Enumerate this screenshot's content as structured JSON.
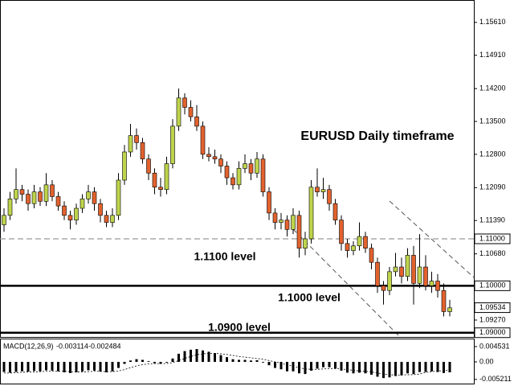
{
  "chart_data": [
    {
      "type": "candlestick",
      "title": "EURUSD Daily timeframe",
      "open": [
        1.113,
        1.115,
        1.1185,
        1.1205,
        1.1195,
        1.1175,
        1.12,
        1.118,
        1.1215,
        1.119,
        1.117,
        1.115,
        1.114,
        1.1165,
        1.1185,
        1.12,
        1.1175,
        1.115,
        1.1135,
        1.115,
        1.1225,
        1.1285,
        1.132,
        1.1305,
        1.127,
        1.124,
        1.121,
        1.1205,
        1.126,
        1.134,
        1.14,
        1.138,
        1.136,
        1.134,
        1.128,
        1.1275,
        1.127,
        1.1255,
        1.123,
        1.1215,
        1.125,
        1.126,
        1.124,
        1.127,
        1.12,
        1.1155,
        1.1135,
        1.114,
        1.112,
        1.115,
        1.108,
        1.11,
        1.121,
        1.12,
        1.1205,
        1.1175,
        1.114,
        1.109,
        1.1075,
        1.1085,
        1.1105,
        1.108,
        1.105,
        1.1,
        1.099,
        1.103,
        1.104,
        1.102,
        1.1065,
        1.1005,
        1.104,
        1.1,
        1.101,
        1.099,
        1.0945
      ],
      "high": [
        1.1165,
        1.12,
        1.125,
        1.1215,
        1.1205,
        1.1215,
        1.121,
        1.124,
        1.1225,
        1.12,
        1.118,
        1.116,
        1.1175,
        1.1195,
        1.1215,
        1.121,
        1.1185,
        1.116,
        1.1165,
        1.124,
        1.13,
        1.1345,
        1.1335,
        1.1315,
        1.128,
        1.125,
        1.123,
        1.1275,
        1.1355,
        1.142,
        1.141,
        1.1395,
        1.1385,
        1.135,
        1.1295,
        1.129,
        1.128,
        1.1265,
        1.124,
        1.1265,
        1.128,
        1.127,
        1.1285,
        1.128,
        1.121,
        1.1165,
        1.1155,
        1.115,
        1.1165,
        1.116,
        1.1115,
        1.1225,
        1.125,
        1.123,
        1.1215,
        1.1185,
        1.115,
        1.11,
        1.1095,
        1.1135,
        1.1115,
        1.109,
        1.106,
        1.101,
        1.104,
        1.107,
        1.106,
        1.108,
        1.1085,
        1.111,
        1.1065,
        1.103,
        1.1025,
        1.1005,
        1.097
      ],
      "low": [
        1.1115,
        1.114,
        1.1175,
        1.118,
        1.116,
        1.1165,
        1.117,
        1.117,
        1.118,
        1.116,
        1.114,
        1.112,
        1.113,
        1.1155,
        1.1175,
        1.116,
        1.1135,
        1.1125,
        1.1125,
        1.114,
        1.1215,
        1.1275,
        1.129,
        1.126,
        1.1225,
        1.1195,
        1.119,
        1.1195,
        1.125,
        1.133,
        1.1365,
        1.135,
        1.133,
        1.127,
        1.1265,
        1.126,
        1.124,
        1.1215,
        1.1205,
        1.1205,
        1.124,
        1.1225,
        1.123,
        1.119,
        1.114,
        1.112,
        1.112,
        1.1105,
        1.111,
        1.106,
        1.1065,
        1.109,
        1.119,
        1.1185,
        1.116,
        1.113,
        1.1075,
        1.106,
        1.1065,
        1.1075,
        1.107,
        1.1035,
        1.0985,
        1.096,
        1.098,
        1.102,
        1.1005,
        1.101,
        1.096,
        1.0995,
        1.099,
        1.0985,
        1.0975,
        1.0935,
        1.0935
      ],
      "close": [
        1.115,
        1.1185,
        1.1205,
        1.1195,
        1.1175,
        1.12,
        1.118,
        1.1215,
        1.119,
        1.117,
        1.115,
        1.114,
        1.1165,
        1.1185,
        1.12,
        1.1175,
        1.115,
        1.1135,
        1.115,
        1.1225,
        1.1285,
        1.132,
        1.1305,
        1.127,
        1.124,
        1.121,
        1.1205,
        1.126,
        1.134,
        1.14,
        1.138,
        1.136,
        1.134,
        1.128,
        1.1275,
        1.127,
        1.1255,
        1.123,
        1.1215,
        1.125,
        1.126,
        1.124,
        1.127,
        1.12,
        1.1155,
        1.1135,
        1.114,
        1.112,
        1.115,
        1.108,
        1.11,
        1.121,
        1.12,
        1.1205,
        1.1175,
        1.114,
        1.109,
        1.1075,
        1.1085,
        1.1105,
        1.108,
        1.105,
        1.1,
        1.099,
        1.103,
        1.104,
        1.102,
        1.1065,
        1.1005,
        1.104,
        1.1,
        1.101,
        1.099,
        1.0945,
        1.0953
      ],
      "up_color": "#bfd44c",
      "down_color": "#e2622e",
      "ylim": [
        1.0891,
        1.1607
      ],
      "yticks": [
        {
          "value": 1.1561,
          "label": "1.15610"
        },
        {
          "value": 1.1491,
          "label": "1.14910"
        },
        {
          "value": 1.142,
          "label": "1.14200"
        },
        {
          "value": 1.135,
          "label": "1.13500"
        },
        {
          "value": 1.128,
          "label": "1.12800"
        },
        {
          "value": 1.1209,
          "label": "1.12090"
        },
        {
          "value": 1.1139,
          "label": "1.11390"
        },
        {
          "value": 1.1068,
          "label": "1.10680"
        },
        {
          "value": 1.0927,
          "label": "1.09270"
        }
      ],
      "levels": [
        {
          "value": 1.11,
          "label": "1.11000",
          "text": "1.1100 level",
          "line_style": "dashed",
          "color": "#999999"
        },
        {
          "value": 1.1,
          "label": "1.10000",
          "text": "1.1000 level",
          "line_style": "solid",
          "color": "#000000"
        },
        {
          "value": 1.09,
          "label": "1.09000",
          "text": "1.0900 level",
          "line_style": "solid",
          "color": "#000000"
        }
      ],
      "last_price": {
        "value": 1.09534,
        "label": "1.09534"
      }
    },
    {
      "type": "macd",
      "name": "MACD(12,26,9)",
      "last_main": -0.003114,
      "last_signal": -0.002484,
      "histogram": [
        -0.003,
        -0.0032,
        -0.003,
        -0.0028,
        -0.0029,
        -0.0027,
        -0.0028,
        -0.0025,
        -0.0026,
        -0.0028,
        -0.0031,
        -0.0033,
        -0.0031,
        -0.0028,
        -0.0025,
        -0.0026,
        -0.0029,
        -0.0031,
        -0.0028,
        -0.0018,
        -0.0006,
        0.0004,
        0.0008,
        0.0006,
        0.0002,
        -0.0004,
        -0.0006,
        -0.0002,
        0.001,
        0.0024,
        0.0032,
        0.0036,
        0.0038,
        0.0034,
        0.003,
        0.0026,
        0.002,
        0.0014,
        0.0008,
        0.0006,
        0.0006,
        0.0004,
        0.0005,
        -0.0002,
        -0.001,
        -0.0018,
        -0.0022,
        -0.0028,
        -0.0028,
        -0.0034,
        -0.0036,
        -0.0026,
        -0.002,
        -0.0016,
        -0.0016,
        -0.002,
        -0.0026,
        -0.0032,
        -0.0034,
        -0.0032,
        -0.0034,
        -0.0038,
        -0.0044,
        -0.0048,
        -0.0046,
        -0.0042,
        -0.004,
        -0.0034,
        -0.0036,
        -0.003,
        -0.003,
        -0.0028,
        -0.003,
        -0.0033,
        -0.0031
      ],
      "signal": [
        -0.0033,
        -0.0033,
        -0.0032,
        -0.0031,
        -0.003,
        -0.003,
        -0.0029,
        -0.0028,
        -0.0028,
        -0.0028,
        -0.0028,
        -0.0029,
        -0.003,
        -0.003,
        -0.0029,
        -0.0028,
        -0.0028,
        -0.0029,
        -0.0029,
        -0.0027,
        -0.0023,
        -0.0017,
        -0.0012,
        -0.0008,
        -0.0006,
        -0.0005,
        -0.0005,
        -0.0005,
        -0.0002,
        0.0004,
        0.001,
        0.0016,
        0.0021,
        0.0024,
        0.0025,
        0.0025,
        0.0024,
        0.0022,
        0.0019,
        0.0016,
        0.0014,
        0.0012,
        0.001,
        0.0008,
        0.0004,
        0.0,
        -0.0004,
        -0.0009,
        -0.0013,
        -0.0017,
        -0.0021,
        -0.0022,
        -0.0022,
        -0.0021,
        -0.002,
        -0.002,
        -0.0021,
        -0.0023,
        -0.0025,
        -0.0027,
        -0.0028,
        -0.003,
        -0.0033,
        -0.0036,
        -0.0038,
        -0.0039,
        -0.0039,
        -0.0038,
        -0.0038,
        -0.0036,
        -0.0031,
        -0.0029,
        -0.0027,
        -0.0026,
        -0.0025
      ],
      "color": "#000000",
      "ylim": [
        -0.0062,
        0.0062
      ],
      "yticks": [
        0.004531,
        {
          "value": 0,
          "label": "0.00"
        },
        -0.005211
      ]
    }
  ]
}
